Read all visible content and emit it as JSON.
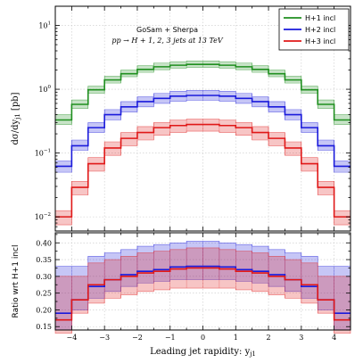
{
  "chart_data": [
    {
      "type": "line",
      "panel": "main",
      "title": "GoSam + Sherpa",
      "subtitle": "pp → H + 1, 2, 3 jets at 13 TeV",
      "ylabel": "dσ/dy",
      "ylabel_sub": "j1",
      "ylabel_unit": " [pb]",
      "yscale": "log",
      "ylim": [
        0.006,
        20
      ],
      "xlim": [
        -4.5,
        4.5
      ],
      "grid": true,
      "legend": "top-right",
      "yticks": [
        {
          "value": 0.01,
          "base": "10",
          "exp": "−2"
        },
        {
          "value": 0.1,
          "base": "10",
          "exp": "−1"
        },
        {
          "value": 1,
          "base": "10",
          "exp": "0"
        },
        {
          "value": 10,
          "base": "10",
          "exp": "1"
        }
      ],
      "bin_edges": [
        -4.5,
        -4,
        -3.5,
        -3,
        -2.5,
        -2,
        -1.5,
        -1,
        -0.5,
        0,
        0.5,
        1,
        1.5,
        2,
        2.5,
        3,
        3.5,
        4,
        4.5
      ],
      "series": [
        {
          "name": "H+1 incl",
          "color": "#1f8f1f",
          "values": [
            0.33,
            0.58,
            0.98,
            1.4,
            1.75,
            2.05,
            2.25,
            2.38,
            2.45,
            2.45,
            2.38,
            2.25,
            2.05,
            1.75,
            1.4,
            0.98,
            0.58,
            0.33
          ],
          "band_low": [
            0.28,
            0.5,
            0.86,
            1.25,
            1.57,
            1.84,
            2.02,
            2.14,
            2.2,
            2.2,
            2.14,
            2.02,
            1.84,
            1.57,
            1.25,
            0.86,
            0.5,
            0.28
          ],
          "band_high": [
            0.4,
            0.68,
            1.12,
            1.6,
            2.0,
            2.34,
            2.58,
            2.7,
            2.78,
            2.78,
            2.7,
            2.58,
            2.34,
            2.0,
            1.6,
            1.12,
            0.68,
            0.4
          ]
        },
        {
          "name": "H+2 incl",
          "color": "#1a1adb",
          "values": [
            0.062,
            0.13,
            0.25,
            0.4,
            0.53,
            0.64,
            0.72,
            0.78,
            0.8,
            0.8,
            0.78,
            0.72,
            0.64,
            0.53,
            0.4,
            0.25,
            0.13,
            0.062
          ],
          "band_low": [
            0.05,
            0.11,
            0.21,
            0.33,
            0.44,
            0.53,
            0.6,
            0.65,
            0.67,
            0.67,
            0.65,
            0.6,
            0.53,
            0.44,
            0.33,
            0.21,
            0.11,
            0.05
          ],
          "band_high": [
            0.075,
            0.16,
            0.3,
            0.48,
            0.64,
            0.76,
            0.86,
            0.93,
            0.96,
            0.96,
            0.93,
            0.86,
            0.76,
            0.64,
            0.48,
            0.3,
            0.16,
            0.075
          ]
        },
        {
          "name": "H+3 incl",
          "color": "#e01818",
          "values": [
            0.01,
            0.029,
            0.068,
            0.12,
            0.17,
            0.21,
            0.25,
            0.27,
            0.28,
            0.28,
            0.27,
            0.25,
            0.21,
            0.17,
            0.12,
            0.068,
            0.029,
            0.01
          ],
          "band_low": [
            0.0075,
            0.022,
            0.052,
            0.092,
            0.13,
            0.16,
            0.19,
            0.21,
            0.22,
            0.22,
            0.21,
            0.19,
            0.16,
            0.13,
            0.092,
            0.052,
            0.022,
            0.0075
          ],
          "band_high": [
            0.0125,
            0.036,
            0.085,
            0.15,
            0.21,
            0.26,
            0.3,
            0.33,
            0.34,
            0.34,
            0.33,
            0.3,
            0.26,
            0.21,
            0.15,
            0.085,
            0.036,
            0.0125
          ]
        }
      ]
    },
    {
      "type": "line",
      "panel": "ratio",
      "ylabel": "Ratio wrt  H+1 incl",
      "xlabel": "Leading jet rapidity:  y",
      "xlabel_sub": "j1",
      "ylim": [
        0.14,
        0.43
      ],
      "xlim": [
        -4.5,
        4.5
      ],
      "grid": true,
      "yticks": [
        0.15,
        0.2,
        0.25,
        0.3,
        0.35,
        0.4
      ],
      "yticklabels": [
        "0.15",
        "0.20",
        "0.25",
        "0.30",
        "0.35",
        "0.40"
      ],
      "xticks": [
        -4,
        -3,
        -2,
        -1,
        0,
        1,
        2,
        3,
        4
      ],
      "xticklabels": [
        "−4",
        "−3",
        "−2",
        "−1",
        "0",
        "1",
        "2",
        "3",
        "4"
      ],
      "bin_edges": [
        -4.5,
        -4,
        -3.5,
        -3,
        -2.5,
        -2,
        -1.5,
        -1,
        -0.5,
        0,
        0.5,
        1,
        1.5,
        2,
        2.5,
        3,
        3.5,
        4,
        4.5
      ],
      "series": [
        {
          "name": "H+2 incl",
          "color": "#1a1adb",
          "values": [
            0.19,
            0.23,
            0.27,
            0.29,
            0.305,
            0.315,
            0.32,
            0.328,
            0.33,
            0.33,
            0.328,
            0.32,
            0.315,
            0.305,
            0.29,
            0.27,
            0.23,
            0.19
          ],
          "band_low": [
            0.14,
            0.2,
            0.235,
            0.255,
            0.27,
            0.28,
            0.285,
            0.29,
            0.29,
            0.29,
            0.29,
            0.285,
            0.28,
            0.27,
            0.255,
            0.235,
            0.2,
            0.14
          ],
          "band_high": [
            0.33,
            0.33,
            0.36,
            0.37,
            0.38,
            0.39,
            0.395,
            0.4,
            0.405,
            0.405,
            0.4,
            0.395,
            0.39,
            0.38,
            0.37,
            0.36,
            0.33,
            0.33
          ]
        },
        {
          "name": "H+3 incl",
          "color": "#e01818",
          "values": [
            0.17,
            0.23,
            0.275,
            0.29,
            0.3,
            0.31,
            0.315,
            0.322,
            0.325,
            0.325,
            0.322,
            0.315,
            0.31,
            0.3,
            0.29,
            0.275,
            0.23,
            0.17
          ],
          "band_low": [
            0.13,
            0.19,
            0.22,
            0.235,
            0.245,
            0.255,
            0.26,
            0.265,
            0.265,
            0.265,
            0.265,
            0.26,
            0.255,
            0.245,
            0.235,
            0.22,
            0.19,
            0.13
          ],
          "band_high": [
            0.3,
            0.3,
            0.34,
            0.35,
            0.36,
            0.37,
            0.375,
            0.38,
            0.385,
            0.385,
            0.38,
            0.375,
            0.37,
            0.36,
            0.35,
            0.34,
            0.3,
            0.3
          ]
        }
      ]
    }
  ]
}
